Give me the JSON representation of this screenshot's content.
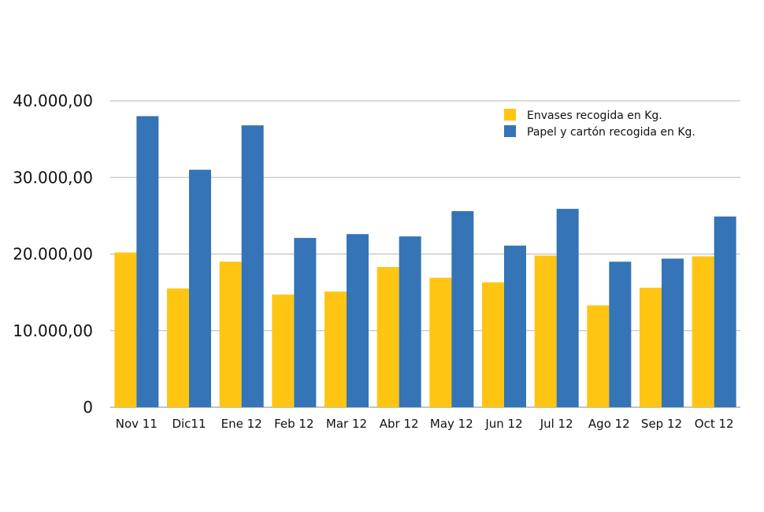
{
  "chart_data": {
    "type": "bar",
    "categories": [
      "Nov 11",
      "Dic11",
      "Ene 12",
      "Feb 12",
      "Mar 12",
      "Abr 12",
      "May 12",
      "Jun 12",
      "Jul 12",
      "Ago 12",
      "Sep 12",
      "Oct 12"
    ],
    "series": [
      {
        "name": "Envases recogida en Kg.",
        "color": "#FFC512",
        "values": [
          20200,
          15500,
          19000,
          14700,
          15100,
          18300,
          16900,
          16300,
          19800,
          13300,
          15600,
          19700
        ]
      },
      {
        "name": "Papel y cartón recogida en Kg.",
        "color": "#3474B7",
        "values": [
          38000,
          31000,
          36800,
          22100,
          22600,
          22300,
          25600,
          21100,
          25900,
          19000,
          19400,
          24900
        ]
      }
    ],
    "ylim": [
      0,
      40000
    ],
    "y_ticks": [
      {
        "value": 0,
        "label": "0"
      },
      {
        "value": 10000,
        "label": "10.000,00"
      },
      {
        "value": 20000,
        "label": "20.000,00"
      },
      {
        "value": 30000,
        "label": "30.000,00"
      },
      {
        "value": 40000,
        "label": "40.000,00"
      }
    ],
    "grid": true,
    "legend_position": "top-right",
    "title": "",
    "xlabel": "",
    "ylabel": ""
  }
}
